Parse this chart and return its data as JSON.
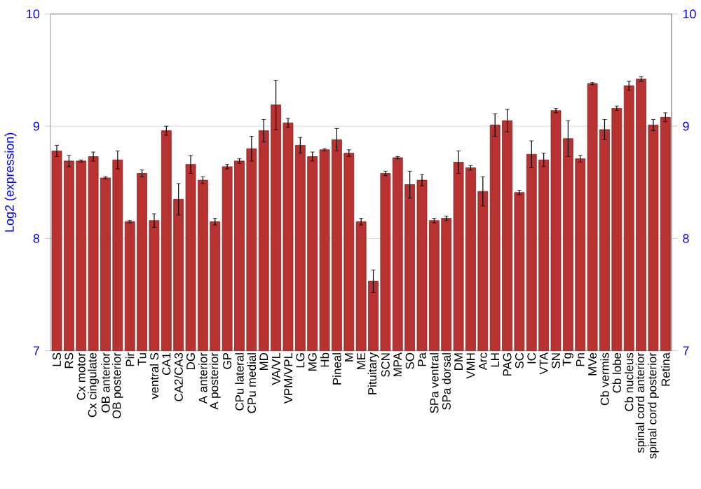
{
  "chart_data": {
    "type": "bar",
    "ylabel": "Log2 (expression)",
    "categories": [
      "LS",
      "RS",
      "Cx motor",
      "Cx cingulate",
      "OB anterior",
      "OB posterior",
      "Pir",
      "Tu",
      "ventral S",
      "CA1",
      "CA2/CA3",
      "DG",
      "A anterior",
      "A posterior",
      "GP",
      "CPu lateral",
      "CPu medial",
      "MD",
      "VA/VL",
      "VPM/VPL",
      "LG",
      "MG",
      "Hb",
      "Pineal",
      "M",
      "ME",
      "Pituitary",
      "SCN",
      "MPA",
      "SO",
      "Pa",
      "SPa ventral",
      "SPa dorsal",
      "DM",
      "VMH",
      "Arc",
      "LH",
      "PAG",
      "SC",
      "IC",
      "VTA",
      "SN",
      "Tg",
      "Pn",
      "MVe",
      "Cb vermis",
      "Cb lobe",
      "Cb nucleus",
      "spinal cord anterior",
      "spinal cord posterior",
      "Retina"
    ],
    "values": [
      8.78,
      8.69,
      8.69,
      8.73,
      8.54,
      8.7,
      8.15,
      8.58,
      8.16,
      8.96,
      8.35,
      8.66,
      8.52,
      8.15,
      8.64,
      8.69,
      8.8,
      8.96,
      9.19,
      9.03,
      8.83,
      8.73,
      8.79,
      8.88,
      8.76,
      8.15,
      7.62,
      8.58,
      8.72,
      8.48,
      8.52,
      8.16,
      8.18,
      8.68,
      8.63,
      8.42,
      9.01,
      9.05,
      8.41,
      8.75,
      8.7,
      9.14,
      8.89,
      8.71,
      9.38,
      8.97,
      9.16,
      9.36,
      9.42,
      9.01,
      9.08
    ],
    "errors": [
      0.05,
      0.05,
      0.01,
      0.04,
      0.01,
      0.08,
      0.01,
      0.03,
      0.06,
      0.04,
      0.14,
      0.08,
      0.03,
      0.03,
      0.02,
      0.02,
      0.11,
      0.1,
      0.22,
      0.04,
      0.07,
      0.04,
      0.01,
      0.1,
      0.03,
      0.03,
      0.1,
      0.02,
      0.01,
      0.12,
      0.05,
      0.02,
      0.02,
      0.1,
      0.02,
      0.13,
      0.1,
      0.1,
      0.02,
      0.12,
      0.06,
      0.02,
      0.16,
      0.03,
      0.01,
      0.09,
      0.02,
      0.04,
      0.02,
      0.05,
      0.04
    ],
    "color": "#b83232",
    "ylim": [
      7,
      10
    ],
    "yticks": [
      7,
      8,
      9,
      10
    ],
    "y2lim": [
      7,
      10
    ],
    "y2ticks": [
      7,
      8,
      9,
      10
    ],
    "grid": "y"
  }
}
